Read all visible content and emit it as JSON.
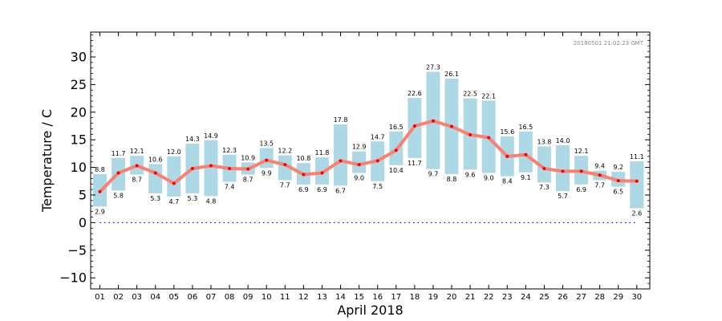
{
  "chart_data": {
    "type": "bar",
    "timestamp": "20180501 21:02:23 GMT",
    "xlabel": "April 2018",
    "ylabel": "Temperature / C",
    "ylim": [
      -12,
      34.5
    ],
    "yticks": [
      -10,
      -5,
      0,
      5,
      10,
      15,
      20,
      25,
      30
    ],
    "ytick_labels": [
      "−10",
      "−5",
      "0",
      "5",
      "10",
      "15",
      "20",
      "25",
      "30"
    ],
    "grid": false,
    "colors": {
      "bar": "#add8e6",
      "mean_line": "#fa8072",
      "mean_marker": "#ff0000",
      "zero_line": "#0000ff"
    },
    "categories": [
      "01",
      "02",
      "03",
      "04",
      "05",
      "06",
      "07",
      "08",
      "09",
      "10",
      "11",
      "12",
      "13",
      "14",
      "15",
      "16",
      "17",
      "18",
      "19",
      "20",
      "21",
      "22",
      "23",
      "24",
      "25",
      "26",
      "27",
      "28",
      "29",
      "30"
    ],
    "series": [
      {
        "values": [
          8.8,
          11.7,
          12.1,
          10.6,
          12.0,
          14.3,
          14.9,
          12.3,
          10.9,
          13.5,
          12.2,
          10.8,
          11.8,
          17.8,
          12.9,
          14.7,
          16.5,
          22.6,
          27.3,
          26.1,
          22.5,
          22.1,
          15.6,
          16.5,
          13.8,
          14.0,
          12.1,
          9.4,
          9.2,
          11.1
        ]
      },
      {
        "values": [
          2.9,
          5.8,
          8.7,
          5.3,
          4.7,
          5.3,
          4.8,
          7.4,
          8.7,
          9.9,
          7.7,
          6.9,
          6.9,
          6.7,
          9.0,
          7.5,
          10.4,
          11.7,
          9.7,
          8.8,
          9.6,
          9.0,
          8.4,
          9.1,
          7.3,
          5.7,
          6.9,
          7.7,
          6.5,
          2.6
        ]
      },
      {
        "values": [
          5.6,
          9.0,
          10.3,
          9.0,
          7.1,
          9.8,
          10.3,
          9.8,
          9.7,
          11.3,
          10.5,
          8.7,
          9.0,
          11.2,
          10.5,
          11.2,
          13.1,
          17.5,
          18.4,
          17.4,
          15.9,
          15.4,
          12.0,
          12.3,
          9.8,
          9.3,
          9.3,
          8.6,
          7.6,
          7.5
        ]
      }
    ]
  }
}
